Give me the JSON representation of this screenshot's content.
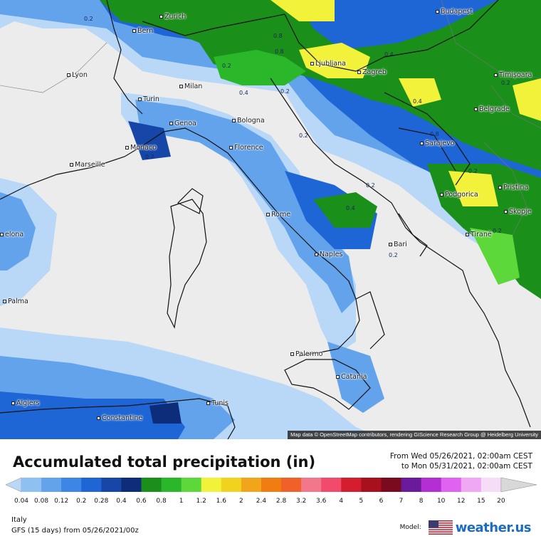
{
  "title": "Accumulated total precipitation (in)",
  "period": {
    "from": "From Wed 05/26/2021, 02:00am CEST",
    "to": "to Mon 05/31/2021, 02:00am CEST"
  },
  "region": "Italy",
  "model_run": "GFS (15 days) from 05/26/2021/00z",
  "model_label": "Model:",
  "brand": "weather.us",
  "attribution": "Map data © OpenStreetMap contributors, rendering GIScience Research Group @ Heidelberg University",
  "colorbar": {
    "ticks": [
      "0.04",
      "0.08",
      "0.12",
      "0.2",
      "0.28",
      "0.4",
      "0.6",
      "0.8",
      "1",
      "1.2",
      "1.6",
      "2",
      "2.4",
      "2.8",
      "3.2",
      "3.6",
      "4",
      "5",
      "6",
      "7",
      "8",
      "10",
      "12",
      "15",
      "20"
    ],
    "colors": [
      "#b9d8f7",
      "#8fc0f2",
      "#62a3ec",
      "#3d86e6",
      "#1e66d6",
      "#1546a8",
      "#0d2d7a",
      "#1a8f1a",
      "#2ab82a",
      "#5cd83a",
      "#f2f23a",
      "#f2d21e",
      "#f2a51a",
      "#f07c12",
      "#f2602a",
      "#f2778a",
      "#f24a6a",
      "#d41e2e",
      "#a8101e",
      "#7a0a1e",
      "#6a1a9a",
      "#b42ed4",
      "#e062f0",
      "#f0a8f4",
      "#f7dcf7",
      "#d8d8d8"
    ]
  },
  "cities": [
    {
      "name": "Zurich"
    },
    {
      "name": "Budapest"
    },
    {
      "name": "Bern"
    },
    {
      "name": "Lyon"
    },
    {
      "name": "Milan"
    },
    {
      "name": "Ljubljana"
    },
    {
      "name": "Zagreb"
    },
    {
      "name": "Timișoara"
    },
    {
      "name": "Turin"
    },
    {
      "name": "Genoa"
    },
    {
      "name": "Bologna"
    },
    {
      "name": "Belgrade"
    },
    {
      "name": "Monaco"
    },
    {
      "name": "Florence"
    },
    {
      "name": "Sarajevo"
    },
    {
      "name": "Marseille"
    },
    {
      "name": "Podgorica"
    },
    {
      "name": "Pristina"
    },
    {
      "name": "Rome"
    },
    {
      "name": "Skopje"
    },
    {
      "name": "elona"
    },
    {
      "name": "Tiranë"
    },
    {
      "name": "Bari"
    },
    {
      "name": "Naples"
    },
    {
      "name": "Palma"
    },
    {
      "name": "Palermo"
    },
    {
      "name": "Catania"
    },
    {
      "name": "Algiers"
    },
    {
      "name": "Tunis"
    },
    {
      "name": "Constantine"
    }
  ],
  "contour_labels": [
    "0.2",
    "0.8",
    "0.2",
    "0.2",
    "0.4",
    "0.8",
    "0.4",
    "0.2",
    "0.2",
    "0.4",
    "0.8",
    "0.2",
    "0.2",
    "0.2",
    "0.4",
    "0.2",
    "0.2"
  ]
}
